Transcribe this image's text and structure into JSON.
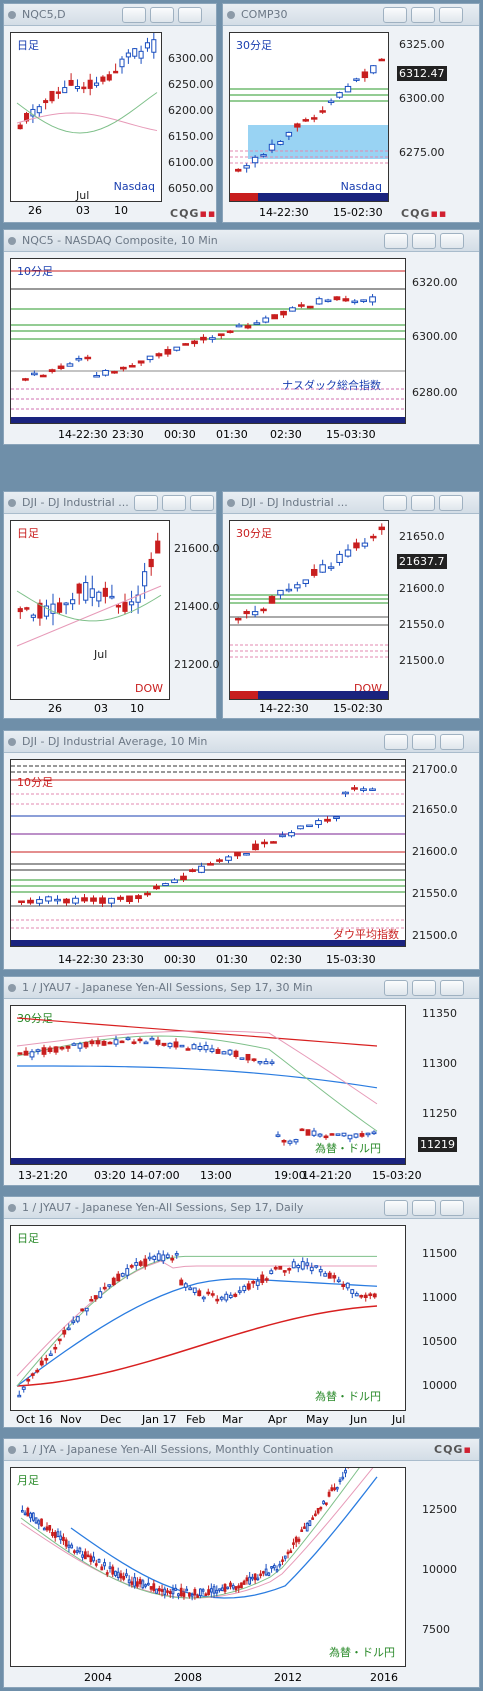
{
  "windows": [
    {
      "id": "w1",
      "title": "NQC5,D",
      "tf": "日足",
      "tag": "Nasdaq",
      "yticks": [
        "6300.00",
        "6250.00",
        "6200.00",
        "6150.00",
        "6100.00",
        "6050.00"
      ],
      "xticks": [
        "26",
        "03",
        "10"
      ],
      "xlabel": "Jul"
    },
    {
      "id": "w2",
      "title": "COMP30",
      "tf": "30分足",
      "tag": "Nasdaq",
      "yticks": [
        "6325.00",
        "6300.00",
        "6275.00"
      ],
      "last": "6312.47",
      "xticks": [
        "14-22:30",
        "15-02:30"
      ]
    },
    {
      "id": "w3",
      "title": "NQC5 - NASDAQ Composite, 10 Min",
      "tf": "10分足",
      "tag": "ナスダック総合指数",
      "yticks": [
        "6320.00",
        "6300.00",
        "6280.00"
      ],
      "xticks": [
        "14-22:30",
        "23:30",
        "00:30",
        "01:30",
        "02:30",
        "15-03:30"
      ]
    },
    {
      "id": "w4",
      "title": "DJI - DJ Industrial ...",
      "tf": "日足",
      "tag": "DOW",
      "yticks": [
        "21600.0",
        "21400.0",
        "21200.0"
      ],
      "xticks": [
        "26",
        "03",
        "10"
      ],
      "xlabel": "Jul"
    },
    {
      "id": "w5",
      "title": "DJI - DJ Industrial ...",
      "tf": "30分足",
      "tag": "DOW",
      "yticks": [
        "21650.0",
        "21600.0",
        "21550.0",
        "21500.0"
      ],
      "last": "21637.7",
      "xticks": [
        "14-22:30",
        "15-02:30"
      ]
    },
    {
      "id": "w6",
      "title": "DJI - DJ Industrial Average, 10 Min",
      "tf": "10分足",
      "tag": "ダウ平均指数",
      "yticks": [
        "21700.0",
        "21650.0",
        "21600.0",
        "21550.0",
        "21500.0"
      ],
      "xticks": [
        "14-22:30",
        "23:30",
        "00:30",
        "01:30",
        "02:30",
        "15-03:30"
      ]
    },
    {
      "id": "w7",
      "title": "1 / JYAU7 - Japanese Yen-All Sessions, Sep 17, 30 Min",
      "tf": "30分足",
      "tag": "為替・ドル円",
      "yticks": [
        "11350",
        "11300",
        "11250"
      ],
      "last": "11219",
      "xticks": [
        "13-21:20",
        "03:20",
        "14-07:00",
        "13:00",
        "19:00",
        "14-21:20",
        "15-03:20"
      ]
    },
    {
      "id": "w8",
      "title": "1 / JYAU7 - Japanese Yen-All Sessions, Sep 17, Daily",
      "tf": "日足",
      "tag": "為替・ドル円",
      "yticks": [
        "11500",
        "11000",
        "10500",
        "10000"
      ],
      "xticks": [
        "Oct 16",
        "Nov",
        "Dec",
        "Jan 17",
        "Feb",
        "Mar",
        "Apr",
        "May",
        "Jun",
        "Jul"
      ]
    },
    {
      "id": "w9",
      "title": "1 / JYA - Japanese Yen-All Sessions, Monthly Continuation",
      "tf": "月足",
      "tag": "為替・ドル円",
      "yticks": [
        "12500",
        "10000",
        "7500"
      ],
      "xticks": [
        "2004",
        "2008",
        "2012",
        "2016"
      ]
    }
  ],
  "cqg_label": "CQG",
  "colors": {
    "up": "#1a4fc0",
    "down": "#c81e1e",
    "ma_green": "#7fc08a",
    "ma_pink": "#e79ab8",
    "ma_blue": "#2a7ce0",
    "ma_red": "#d82020"
  }
}
